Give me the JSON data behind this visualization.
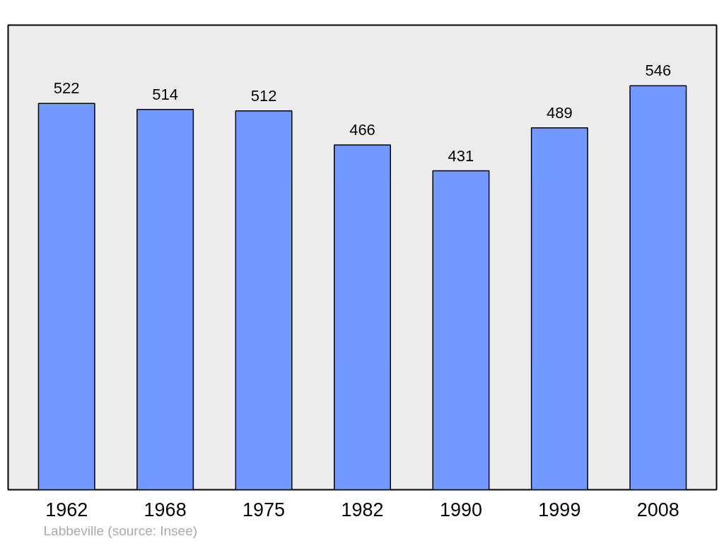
{
  "chart_data": {
    "type": "bar",
    "categories": [
      "1962",
      "1968",
      "1975",
      "1982",
      "1990",
      "1999",
      "2008"
    ],
    "values": [
      522,
      514,
      512,
      466,
      431,
      489,
      546
    ],
    "color": "#7299ff",
    "data_labels": true,
    "grid": false,
    "annotations": [
      "Labbeville    (source: Insee)"
    ]
  }
}
